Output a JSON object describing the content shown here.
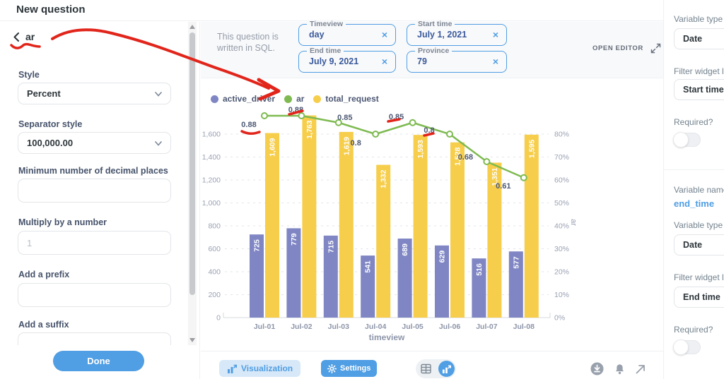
{
  "header": {
    "title": "New question"
  },
  "format_panel": {
    "back_label": "ar",
    "style_label": "Style",
    "style_value": "Percent",
    "separator_label": "Separator style",
    "separator_value": "100,000.00",
    "min_decimal_label": "Minimum number of decimal places",
    "min_decimal_value": "",
    "multiply_label": "Multiply by a number",
    "multiply_value": "",
    "multiply_placeholder": "1",
    "prefix_label": "Add a prefix",
    "prefix_value": "",
    "suffix_label": "Add a suffix",
    "suffix_value": "",
    "done_label": "Done"
  },
  "query_bar": {
    "sql_note": "This question is written in SQL.",
    "open_editor_label": "OPEN EDITOR",
    "clear_glyph": "×",
    "filters": [
      {
        "label": "Timeview",
        "value": "day"
      },
      {
        "label": "Start time",
        "value": "July 1, 2021"
      },
      {
        "label": "End time",
        "value": "July 9, 2021"
      },
      {
        "label": "Province",
        "value": "79"
      }
    ]
  },
  "chart_data": {
    "type": "combo",
    "categories": [
      "Jul-01",
      "Jul-02",
      "Jul-03",
      "Jul-04",
      "Jul-05",
      "Jul-06",
      "Jul-07",
      "Jul-08"
    ],
    "series": [
      {
        "name": "active_driver",
        "type": "bar",
        "axis": "left",
        "color": "#7f86c3",
        "values": [
          725,
          779,
          715,
          541,
          689,
          629,
          516,
          577
        ],
        "labels": [
          "725",
          "779",
          "715",
          "541",
          "689",
          "629",
          "516",
          "577"
        ]
      },
      {
        "name": "total_request",
        "type": "bar",
        "axis": "left",
        "color": "#f6ce4c",
        "values": [
          1609,
          1763,
          1619,
          1332,
          1593,
          1528,
          1351,
          1595
        ],
        "labels": [
          "1,609",
          "1,763",
          "1,619",
          "1,332",
          "1,593",
          "1,528",
          "1,351",
          "1,595"
        ]
      },
      {
        "name": "ar",
        "type": "line",
        "axis": "right",
        "color": "#7eba51",
        "values": [
          0.88,
          0.88,
          0.85,
          0.8,
          0.85,
          0.8,
          0.68,
          0.61
        ],
        "labels": [
          "0.88",
          "0.88",
          "0.85",
          "0.8",
          "0.85",
          "0.8",
          "0.68",
          "0.61"
        ]
      }
    ],
    "xlabel": "timeview",
    "left_axis": {
      "min": 0,
      "max": 1600,
      "tick_step": 200,
      "tick_labels": [
        "0",
        "200",
        "400",
        "600",
        "800",
        "1,000",
        "1,200",
        "1,400",
        "1,600"
      ]
    },
    "right_axis": {
      "title": "ar",
      "min": 0,
      "max": 0.8,
      "tick_labels": [
        "0%",
        "10%",
        "20%",
        "30%",
        "40%",
        "50%",
        "60%",
        "70%",
        "80%"
      ]
    },
    "grid": "dashed-horizontal",
    "legend_position": "top-left"
  },
  "toolbar": {
    "visualization_label": "Visualization",
    "settings_label": "Settings"
  },
  "variables_panel": {
    "start": {
      "type_label": "Variable type",
      "type_value": "Date",
      "widget_label": "Filter widget label",
      "widget_value": "Start time",
      "required_label": "Required?",
      "required_value": false
    },
    "end": {
      "name_label": "Variable name",
      "name_value": "end_time",
      "type_label": "Variable type",
      "type_value": "Date",
      "widget_label": "Filter widget label",
      "widget_value": "End time",
      "required_label": "Required?",
      "required_value": false
    }
  }
}
